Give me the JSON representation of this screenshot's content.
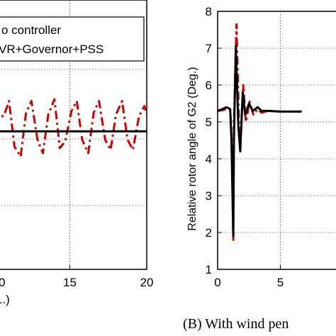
{
  "chart_data": [
    {
      "type": "line",
      "title": "",
      "xlabel": "...)",
      "ylabel": "",
      "xlim": [
        10,
        20
      ],
      "ylim": [
        0,
        8
      ],
      "grid": true,
      "x_ticks": [
        "15",
        "20"
      ],
      "x_ticks_left_fragment": "0",
      "legend": {
        "placement": "top-right",
        "entries": [
          "o controller",
          "VR+Governor+PSS"
        ]
      },
      "series": [
        {
          "name": "o controller",
          "color": "#cc0000",
          "style": "dashdot",
          "x": [
            10.0,
            10.3,
            10.7,
            11.05,
            11.4,
            11.8,
            12.15,
            12.5,
            12.9,
            13.25,
            13.6,
            14.0,
            14.35,
            14.7,
            15.1,
            15.45,
            15.8,
            16.2,
            16.55,
            16.9,
            17.3,
            17.65,
            18.0,
            18.4,
            18.75,
            19.1,
            19.5,
            19.85,
            20.0
          ],
          "y": [
            4.75,
            4.55,
            4.55,
            5.0,
            3.65,
            3.35,
            4.65,
            5.0,
            3.85,
            3.45,
            4.6,
            5.05,
            3.6,
            3.8,
            4.7,
            5.0,
            3.85,
            3.45,
            4.65,
            5.0,
            3.85,
            3.55,
            4.6,
            5.0,
            3.85,
            3.55,
            4.55,
            4.85,
            4.6
          ]
        },
        {
          "name": "VR+Governor+PSS",
          "color": "#000000",
          "style": "solid",
          "x": [
            10,
            20
          ],
          "y": [
            4.1,
            4.1
          ]
        }
      ]
    },
    {
      "type": "line",
      "title": "",
      "xlabel": "",
      "ylabel": "Relative rotor angle of G2 (Deg.)",
      "xlim": [
        0,
        10
      ],
      "ylim": [
        1,
        8
      ],
      "grid": true,
      "x_ticks": [
        "0",
        "5"
      ],
      "y_ticks": [
        "1",
        "2",
        "3",
        "4",
        "5",
        "6",
        "7",
        "8"
      ],
      "caption": "(B) With wind pen",
      "series": [
        {
          "name": "",
          "color": "#cc0000",
          "style": "dashdot",
          "x": [
            0.0,
            0.4,
            0.7,
            1.0,
            1.1,
            1.25,
            1.3,
            1.5,
            1.7,
            1.85,
            2.05,
            2.25,
            2.55,
            2.85,
            3.2,
            3.5,
            4.0,
            5.0,
            6.0,
            6.7
          ],
          "y": [
            5.3,
            5.32,
            5.35,
            5.3,
            4.8,
            1.8,
            5.0,
            7.65,
            5.0,
            4.6,
            6.0,
            5.0,
            5.55,
            5.2,
            5.35,
            5.25,
            5.3,
            5.28,
            5.28,
            5.28
          ]
        },
        {
          "name": "",
          "color": "#000000",
          "style": "solid",
          "x": [
            0.0,
            0.4,
            0.7,
            1.0,
            1.1,
            1.25,
            1.3,
            1.45,
            1.65,
            1.8,
            2.0,
            2.2,
            2.5,
            2.8,
            3.2,
            3.5,
            4.0,
            5.0,
            6.0,
            6.7
          ],
          "y": [
            5.3,
            5.35,
            5.4,
            5.35,
            4.5,
            1.9,
            4.5,
            7.05,
            4.9,
            4.2,
            5.8,
            5.2,
            5.5,
            5.3,
            5.4,
            5.3,
            5.3,
            5.28,
            5.28,
            5.28
          ]
        }
      ]
    }
  ]
}
